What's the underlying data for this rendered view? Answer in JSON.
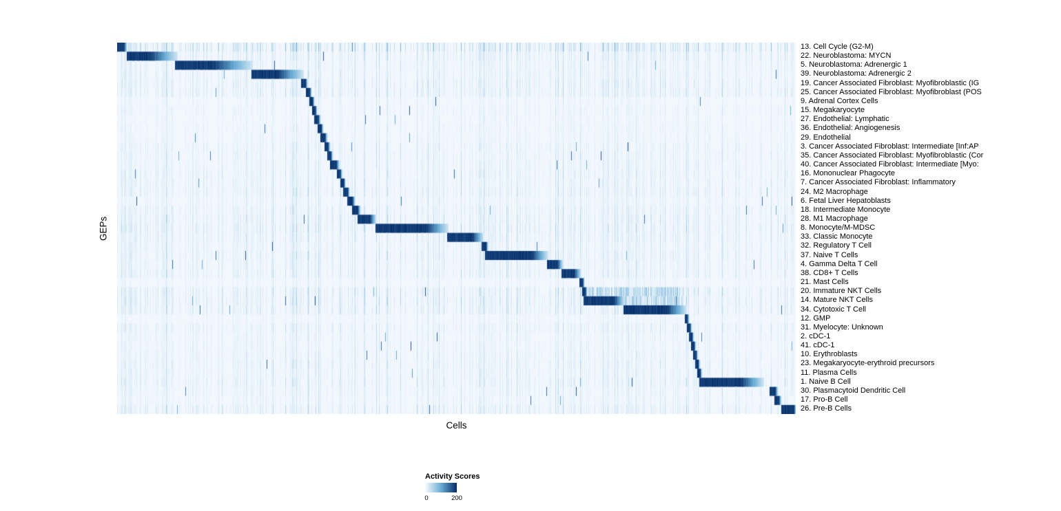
{
  "chart_data": {
    "type": "heatmap",
    "title": "",
    "xlabel": "Cells",
    "ylabel": "GEPs",
    "x_axis_note": "individual cells as columns, no tick labels",
    "legend": {
      "title": "Activity Scores",
      "min": 0,
      "max": 200,
      "min_label": "0",
      "max_label": "200"
    },
    "colorscale": [
      "#f7fbff",
      "#6baed6",
      "#08306b"
    ],
    "rows": [
      {
        "label": "13. Cell Cycle (G2-M)",
        "block": [
          0.0,
          0.014
        ],
        "fade": 0.3,
        "noise": 0.55
      },
      {
        "label": "22. Neuroblastoma: MYCN",
        "block": [
          0.015,
          0.088
        ],
        "fade": 0.55,
        "noise": 0.3
      },
      {
        "label": "5. Neuroblastoma: Adrenergic 1",
        "block": [
          0.086,
          0.198
        ],
        "fade": 0.5,
        "noise": 0.25
      },
      {
        "label": "39. Neuroblastoma: Adrenergic 2",
        "block": [
          0.198,
          0.274
        ],
        "fade": 0.5,
        "noise": 0.25
      },
      {
        "label": "19. Cancer Associated Fibroblast: Myofibroblastic (IG",
        "block": [
          0.272,
          0.28
        ],
        "noise": 0.3
      },
      {
        "label": "25. Cancer Associated Fibroblast: Myofibroblast (POS",
        "block": [
          0.279,
          0.286
        ],
        "noise": 0.3
      },
      {
        "label": "9. Adrenal Cortex Cells",
        "block": [
          0.284,
          0.29
        ],
        "noise": 0.15
      },
      {
        "label": "15. Megakaryocyte",
        "block": [
          0.288,
          0.294
        ],
        "noise": 0.18
      },
      {
        "label": "27. Endothelial: Lymphatic",
        "block": [
          0.291,
          0.299
        ],
        "noise": 0.15
      },
      {
        "label": "36. Endothelial: Angiogenesis",
        "block": [
          0.296,
          0.303
        ],
        "noise": 0.18
      },
      {
        "label": "29. Endothelial",
        "block": [
          0.3,
          0.309
        ],
        "noise": 0.18
      },
      {
        "label": "3. Cancer Associated Fibroblast: Intermediate [Inf:AP",
        "block": [
          0.306,
          0.313
        ],
        "noise": 0.22
      },
      {
        "label": "35. Cancer Associated Fibroblast: Myofibroblastic (Cor",
        "block": [
          0.31,
          0.317
        ],
        "noise": 0.22
      },
      {
        "label": "40. Cancer Associated Fibroblast: Intermediate [Myo:",
        "block": [
          0.314,
          0.327
        ],
        "noise": 0.22
      },
      {
        "label": "16. Mononuclear Phagocyte",
        "block": [
          0.324,
          0.331
        ],
        "noise": 0.25
      },
      {
        "label": "7. Cancer Associated Fibroblast: Inflammatory",
        "block": [
          0.329,
          0.336
        ],
        "noise": 0.25
      },
      {
        "label": "24. M2 Macrophage",
        "block": [
          0.334,
          0.342
        ],
        "noise": 0.28
      },
      {
        "label": "6. Fetal Liver Hepatoblasts",
        "block": [
          0.34,
          0.35
        ],
        "noise": 0.2
      },
      {
        "label": "18. Intermediate Monocyte",
        "block": [
          0.347,
          0.358
        ],
        "noise": 0.28
      },
      {
        "label": "28. M1 Macrophage",
        "block": [
          0.355,
          0.381
        ],
        "noise": 0.3
      },
      {
        "label": "8. Monocyte/M-MDSC",
        "block": [
          0.381,
          0.487
        ],
        "fade": 0.3,
        "noise": 0.35
      },
      {
        "label": "33. Classic Monocyte",
        "block": [
          0.487,
          0.539
        ],
        "fade": 0.3,
        "noise": 0.3
      },
      {
        "label": "32. Regulatory T Cell",
        "block": [
          0.538,
          0.546
        ],
        "noise": 0.25
      },
      {
        "label": "37. Naive T Cells",
        "block": [
          0.543,
          0.634
        ],
        "fade": 0.25,
        "noise": 0.28
      },
      {
        "label": "4. Gamma Delta T Cell",
        "block": [
          0.634,
          0.656
        ],
        "noise": 0.25
      },
      {
        "label": "38. CD8+ T Cells",
        "block": [
          0.655,
          0.683
        ],
        "noise": 0.28
      },
      {
        "label": "21. Mast Cells",
        "block": [
          0.682,
          0.688
        ],
        "noise": 0.15
      },
      {
        "label": "20. Immature NKT Cells",
        "block": [
          0.686,
          0.692
        ],
        "noise": 0.35,
        "bands": [
          [
            0.692,
            0.835,
            0.38
          ]
        ]
      },
      {
        "label": "14. Mature NKT Cells",
        "block": [
          0.688,
          0.747
        ],
        "fade": 0.25,
        "noise": 0.35,
        "bands": [
          [
            0.747,
            0.835,
            0.33
          ]
        ]
      },
      {
        "label": "34. Cytotoxic T Cell",
        "block": [
          0.747,
          0.838
        ],
        "fade": 0.3,
        "noise": 0.3
      },
      {
        "label": "12. GMP",
        "block": [
          0.837,
          0.842
        ],
        "noise": 0.15
      },
      {
        "label": "31. Myelocyte: Unknown",
        "block": [
          0.84,
          0.846
        ],
        "noise": 0.25
      },
      {
        "label": "2. cDC-1",
        "block": [
          0.843,
          0.849
        ],
        "noise": 0.2
      },
      {
        "label": "41. cDC-1",
        "block": [
          0.846,
          0.852
        ],
        "noise": 0.2
      },
      {
        "label": "10. Erythroblasts",
        "block": [
          0.849,
          0.855
        ],
        "noise": 0.22
      },
      {
        "label": "23. Megakaryocyte-erythroid precursors",
        "block": [
          0.852,
          0.858
        ],
        "noise": 0.25
      },
      {
        "label": "11. Plasma Cells",
        "block": [
          0.855,
          0.861
        ],
        "noise": 0.25
      },
      {
        "label": "1. Naive B Cell",
        "block": [
          0.858,
          0.952
        ],
        "fade": 0.35,
        "noise": 0.28
      },
      {
        "label": "30. Plasmacytoid Dendritic Cell",
        "block": [
          0.962,
          0.973
        ],
        "noise": 0.22
      },
      {
        "label": "17. Pro-B Cell",
        "block": [
          0.969,
          0.978
        ],
        "noise": 0.2
      },
      {
        "label": "26. Pre-B Cells",
        "block": [
          0.979,
          1.0
        ],
        "fade": 0.15,
        "noise": 0.3
      }
    ]
  }
}
